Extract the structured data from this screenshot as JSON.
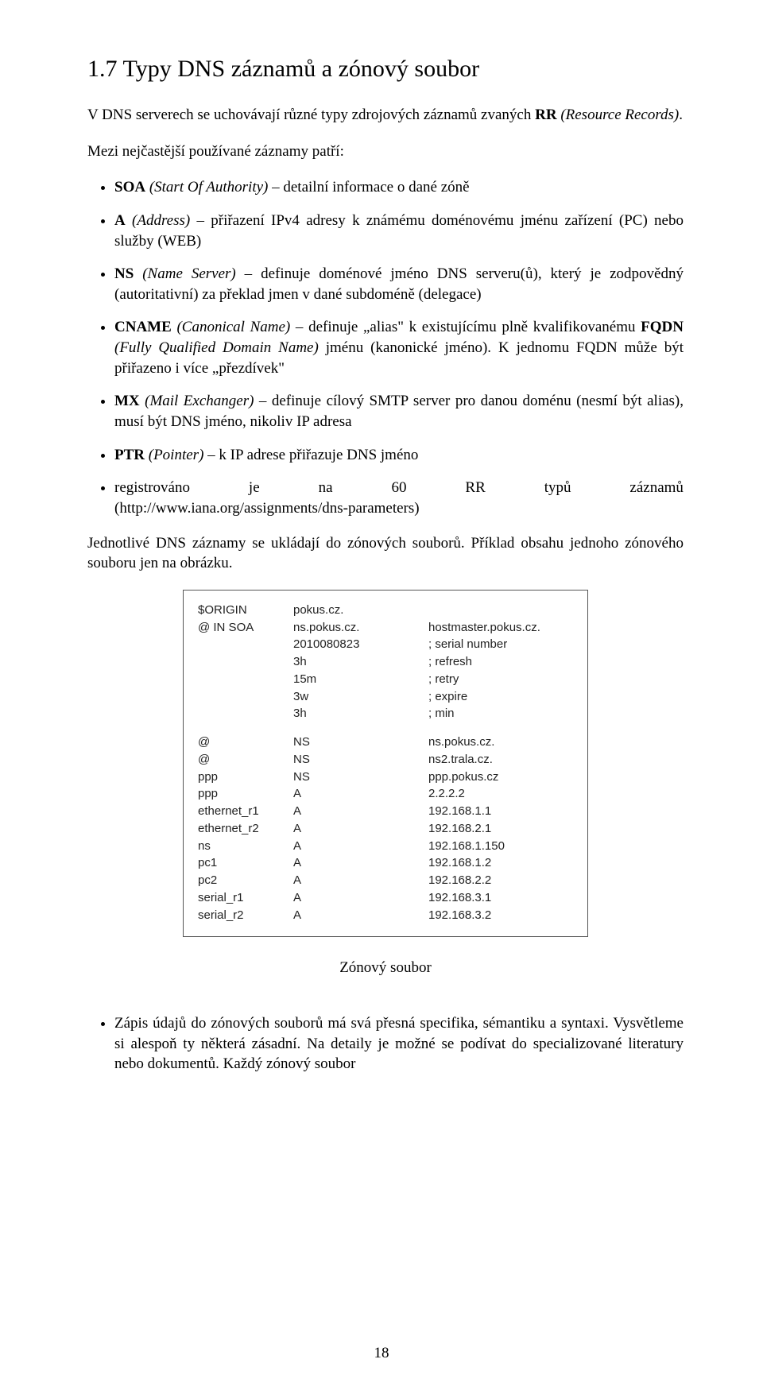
{
  "title": "1.7  Typy DNS záznamů a zónový soubor",
  "intro_pre": "V DNS serverech se uchovávají různé typy zdrojových záznamů zvaných ",
  "intro_bold": "RR",
  "intro_post_italic": "(Resource Records)",
  "intro_tail": ".",
  "list_intro": "Mezi nejčastější používané záznamy patří:",
  "items": {
    "soa": {
      "b": "SOA",
      "i": " (Start Of Authority)",
      "t": " – detailní informace o dané zóně"
    },
    "a": {
      "b": "A",
      "i": " (Address)",
      "t": " – přiřazení IPv4 adresy k známému doménovému jménu zařízení (PC) nebo služby (WEB)"
    },
    "ns": {
      "b": "NS",
      "i": " (Name Server)",
      "t": " – definuje doménové jméno DNS serveru(ů), který je zodpovědný (autoritativní) za překlad jmen v dané subdoméně (delegace)"
    },
    "cname": {
      "b": "CNAME",
      "i": " (Canonical Name)",
      "t1": " – definuje „alias\" k existujícímu plně kvalifikovanému ",
      "b2": "FQDN",
      "i2": " (Fully Qualified Domain Name)",
      "t2": " jménu (kanonické jméno). K jednomu FQDN může být přiřazeno i více „přezdívek\""
    },
    "mx": {
      "b": "MX",
      "i": " (Mail Exchanger)",
      "t": " – definuje cílový SMTP server pro danou doménu (nesmí být alias), musí být DNS jméno, nikoliv IP adresa"
    },
    "ptr": {
      "b": "PTR",
      "i": " (Pointer)",
      "t": " – k IP adrese přiřazuje DNS jméno"
    },
    "reg": {
      "words": [
        "registrováno",
        "je",
        "na",
        "60",
        "RR",
        "typů",
        "záznamů"
      ],
      "url": "(http://www.iana.org/assignments/dns-parameters)"
    }
  },
  "para_after": "Jednotlivé DNS záznamy se ukládají do zónových souborů. Příklad obsahu jednoho zónového souboru jen na obrázku.",
  "zone": {
    "head": [
      [
        "$ORIGIN",
        "pokus.cz.",
        ""
      ],
      [
        "@ IN SOA",
        "ns.pokus.cz.",
        "hostmaster.pokus.cz."
      ],
      [
        "",
        "2010080823",
        "; serial number"
      ],
      [
        "",
        "3h",
        "; refresh"
      ],
      [
        "",
        "15m",
        "; retry"
      ],
      [
        "",
        "3w",
        "; expire"
      ],
      [
        "",
        "3h",
        "; min"
      ]
    ],
    "body": [
      [
        "@",
        "NS",
        "ns.pokus.cz."
      ],
      [
        "@",
        "NS",
        "ns2.trala.cz."
      ],
      [
        "ppp",
        "NS",
        "ppp.pokus.cz"
      ],
      [
        "ppp",
        "A",
        "2.2.2.2"
      ],
      [
        "ethernet_r1",
        "A",
        "192.168.1.1"
      ],
      [
        "ethernet_r2",
        "A",
        "192.168.2.1"
      ],
      [
        "ns",
        "A",
        "192.168.1.150"
      ],
      [
        "pc1",
        "A",
        "192.168.1.2"
      ],
      [
        "pc2",
        "A",
        "192.168.2.2"
      ],
      [
        "serial_r1",
        "A",
        "192.168.3.1"
      ],
      [
        "serial_r2",
        "A",
        "192.168.3.2"
      ]
    ]
  },
  "caption": "Zónový soubor",
  "bottom_bullet": "Zápis údajů do zónových souborů má svá přesná specifika, sémantiku a syntaxi. Vysvětleme si alespoň ty některá zásadní. Na detaily je možné se podívat do specializované literatury nebo dokumentů. Každý zónový soubor",
  "page_no": "18"
}
